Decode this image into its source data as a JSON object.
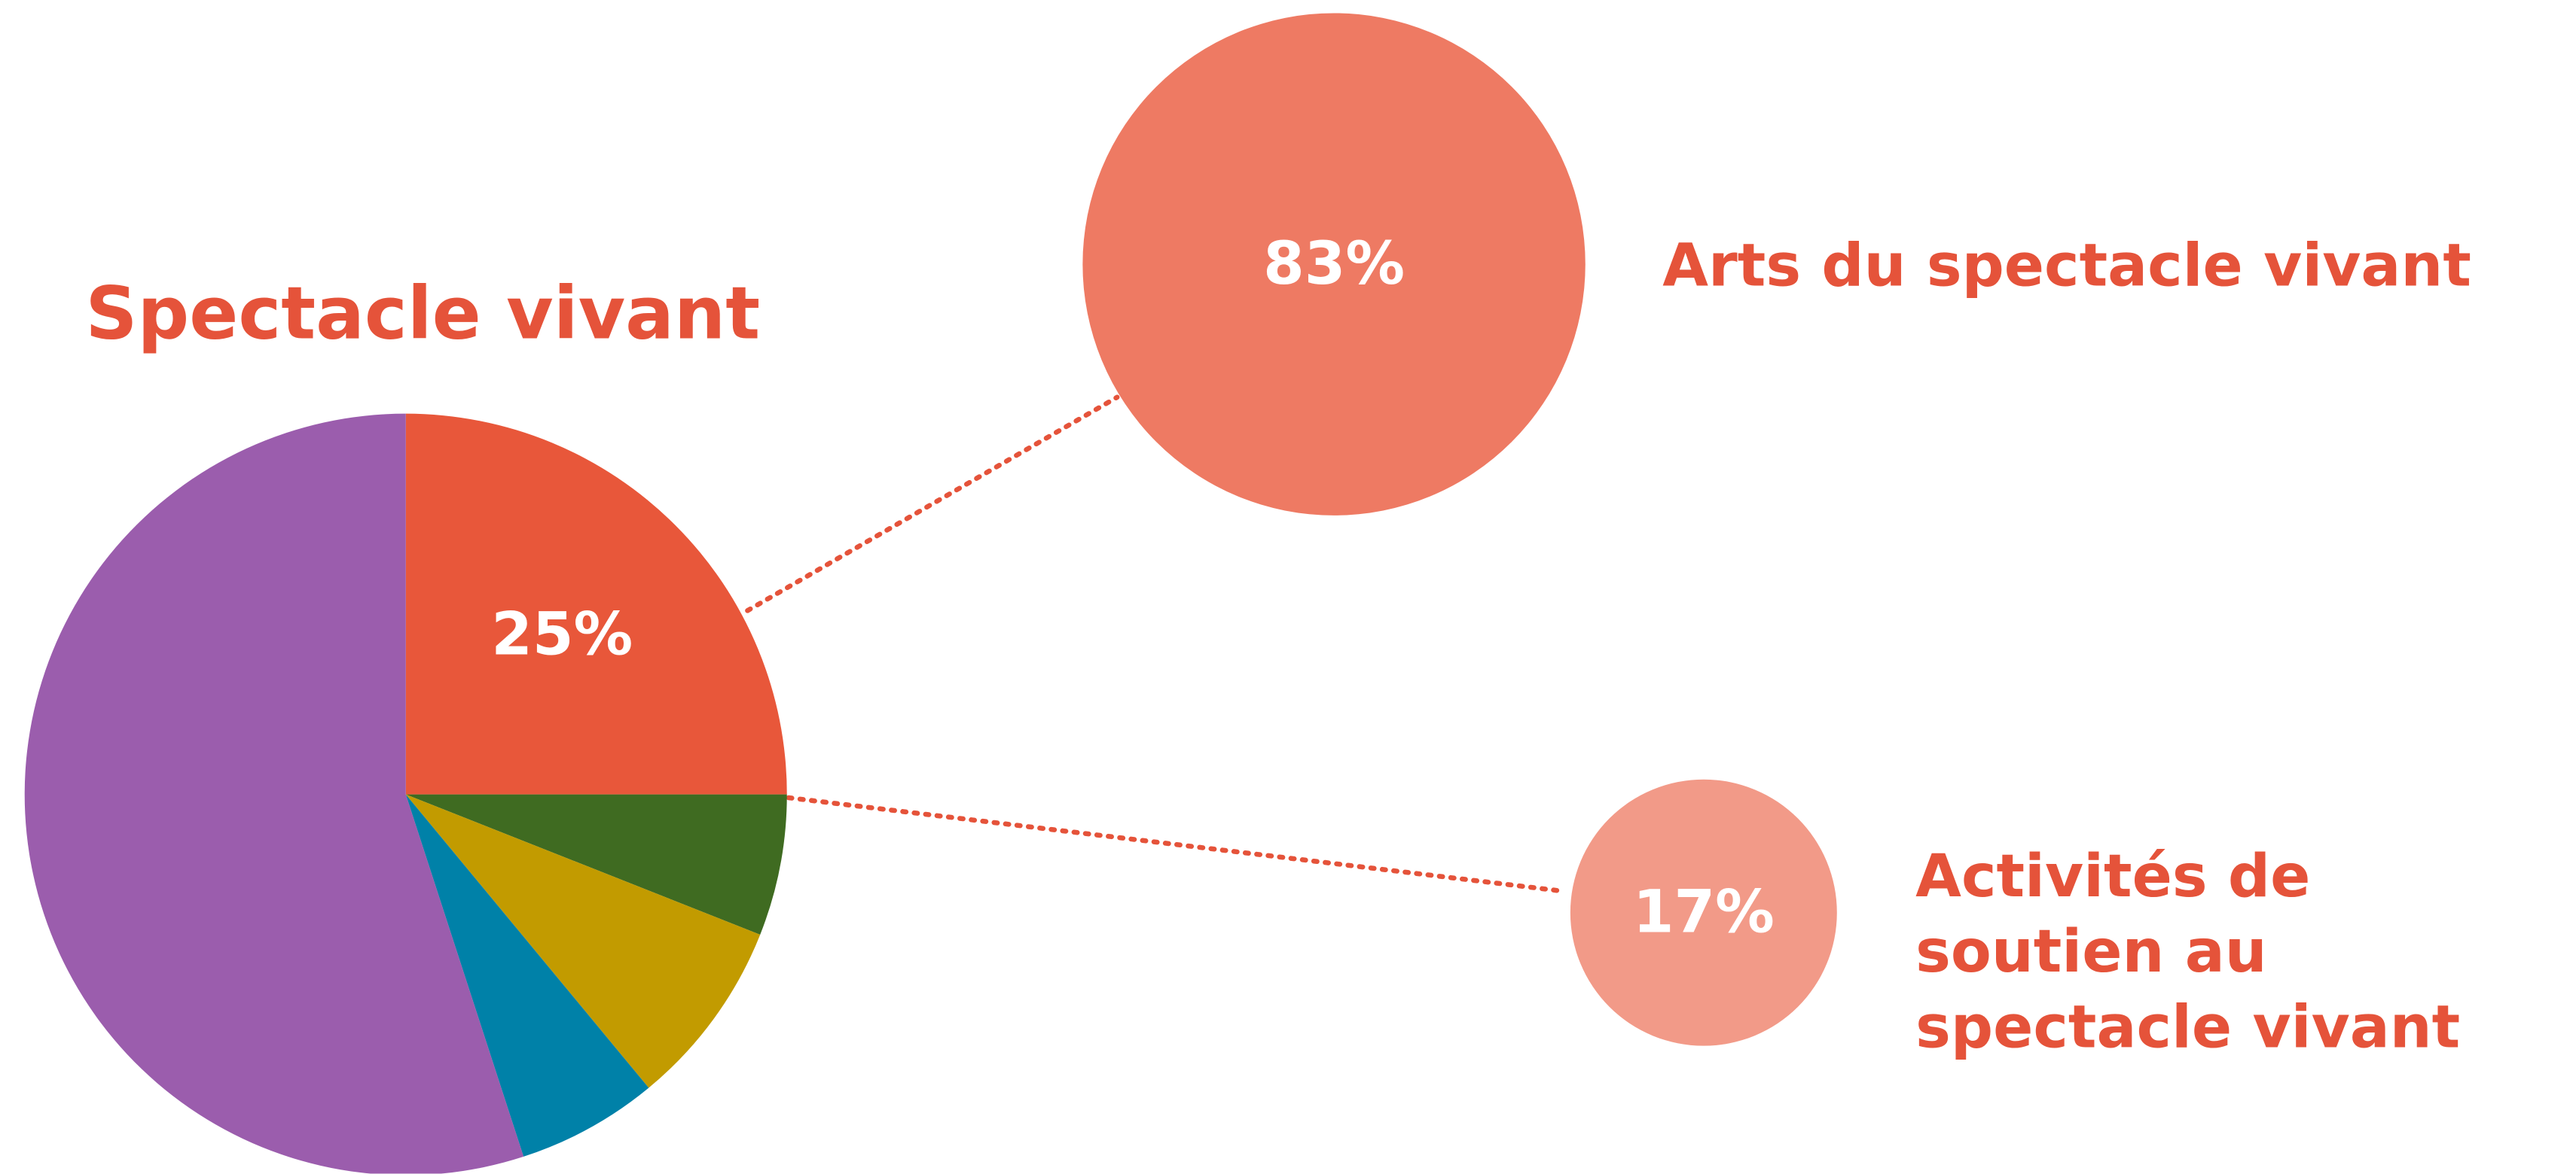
{
  "chart_data": [
    {
      "type": "pie",
      "title": "Spectacle vivant",
      "categories": [
        null,
        null,
        null,
        null,
        null
      ],
      "values": [
        25,
        6,
        8,
        6,
        55
      ],
      "value_labels": [
        "25%",
        null,
        null,
        null,
        null
      ],
      "colors": [
        "#e8573a",
        "#3f6b21",
        "#c29b00",
        "#0081a8",
        "#9b5dad"
      ]
    },
    {
      "type": "bubble",
      "categories": [
        "Arts du spectacle vivant",
        "Activités de soutien au spectacle vivant"
      ],
      "values": [
        83,
        17
      ],
      "value_labels": [
        "83%",
        "17%"
      ],
      "colors": [
        "#ee7a63",
        "#f29a88"
      ]
    }
  ]
}
